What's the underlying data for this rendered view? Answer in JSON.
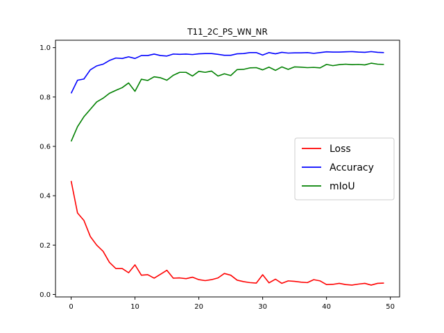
{
  "chart_data": {
    "type": "line",
    "title": "T11_2C_PS_WN_NR",
    "xlabel": "",
    "ylabel": "",
    "xlim": [
      -2.45,
      51.45
    ],
    "ylim": [
      -0.01,
      1.03
    ],
    "xticks": [
      0,
      10,
      20,
      30,
      40,
      50
    ],
    "yticks": [
      0.0,
      0.2,
      0.4,
      0.6,
      0.8,
      1.0
    ],
    "ytick_labels": [
      "0.0",
      "0.2",
      "0.4",
      "0.6",
      "0.8",
      "1.0"
    ],
    "grid": false,
    "legend_position": "center-right",
    "x": [
      0,
      1,
      2,
      3,
      4,
      5,
      6,
      7,
      8,
      9,
      10,
      11,
      12,
      13,
      14,
      15,
      16,
      17,
      18,
      19,
      20,
      21,
      22,
      23,
      24,
      25,
      26,
      27,
      28,
      29,
      30,
      31,
      32,
      33,
      34,
      35,
      36,
      37,
      38,
      39,
      40,
      41,
      42,
      43,
      44,
      45,
      46,
      47,
      48,
      49
    ],
    "series": [
      {
        "name": "Loss",
        "color": "#ff0000",
        "values": [
          0.46,
          0.33,
          0.3,
          0.235,
          0.2,
          0.175,
          0.13,
          0.105,
          0.105,
          0.088,
          0.12,
          0.078,
          0.08,
          0.066,
          0.082,
          0.098,
          0.066,
          0.067,
          0.064,
          0.07,
          0.06,
          0.056,
          0.06,
          0.067,
          0.085,
          0.078,
          0.058,
          0.052,
          0.048,
          0.046,
          0.08,
          0.047,
          0.062,
          0.045,
          0.055,
          0.053,
          0.05,
          0.048,
          0.06,
          0.055,
          0.04,
          0.041,
          0.045,
          0.04,
          0.038,
          0.042,
          0.045,
          0.038,
          0.045,
          0.046
        ]
      },
      {
        "name": "Accuracy",
        "color": "#0000ff",
        "values": [
          0.815,
          0.868,
          0.873,
          0.91,
          0.926,
          0.933,
          0.948,
          0.958,
          0.956,
          0.963,
          0.956,
          0.968,
          0.968,
          0.974,
          0.968,
          0.966,
          0.974,
          0.973,
          0.974,
          0.972,
          0.975,
          0.976,
          0.976,
          0.973,
          0.969,
          0.969,
          0.975,
          0.976,
          0.98,
          0.98,
          0.97,
          0.98,
          0.975,
          0.981,
          0.978,
          0.979,
          0.979,
          0.98,
          0.977,
          0.98,
          0.983,
          0.982,
          0.982,
          0.983,
          0.984,
          0.982,
          0.981,
          0.984,
          0.981,
          0.98
        ]
      },
      {
        "name": "mIoU",
        "color": "#008000",
        "values": [
          0.62,
          0.68,
          0.72,
          0.75,
          0.78,
          0.795,
          0.815,
          0.827,
          0.838,
          0.857,
          0.823,
          0.872,
          0.867,
          0.882,
          0.878,
          0.868,
          0.888,
          0.9,
          0.9,
          0.885,
          0.904,
          0.9,
          0.905,
          0.885,
          0.894,
          0.887,
          0.911,
          0.912,
          0.918,
          0.919,
          0.91,
          0.921,
          0.908,
          0.922,
          0.912,
          0.922,
          0.921,
          0.919,
          0.92,
          0.918,
          0.932,
          0.927,
          0.931,
          0.933,
          0.931,
          0.932,
          0.93,
          0.937,
          0.933,
          0.932
        ]
      }
    ]
  }
}
